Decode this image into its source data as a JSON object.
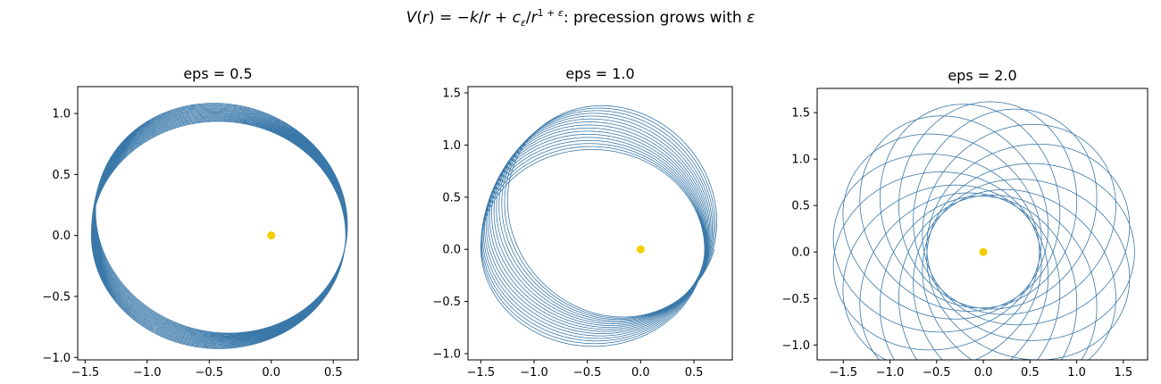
{
  "figure": {
    "suptitle": "V(r) = −k/r + c_ε/r^(1+ε): precession grows with ε"
  },
  "style": {
    "orbit_color": "#3a78a9",
    "sun_color": "#f2cf00",
    "frame_color": "#000000"
  },
  "chart_data": [
    {
      "type": "line",
      "title": "eps = 0.5",
      "xlabel": "",
      "ylabel": "",
      "xlim": [
        -1.56,
        0.7
      ],
      "ylim": [
        -1.02,
        1.22
      ],
      "xticks": [
        -1.5,
        -1.0,
        -0.5,
        0.0,
        0.5
      ],
      "xtick_labels": [
        "−1.5",
        "−1.0",
        "−0.5",
        "0.0",
        "0.5"
      ],
      "yticks": [
        -1.0,
        -0.5,
        0.0,
        0.5,
        1.0
      ],
      "ytick_labels": [
        "−1.0",
        "−0.5",
        "0.0",
        "0.5",
        "1.0"
      ],
      "grid": false,
      "orbit": {
        "periapsis": 0.6,
        "apoapsis": 1.45,
        "precession_per_orbit_deg": -1.0,
        "start_angle_deg": 0,
        "orbits": 20
      },
      "focus": {
        "x": 0.0,
        "y": 0.0
      }
    },
    {
      "type": "line",
      "title": "eps = 1.0",
      "xlabel": "",
      "ylabel": "",
      "xlim": [
        -1.62,
        0.86
      ],
      "ylim": [
        -1.06,
        1.56
      ],
      "xticks": [
        -1.5,
        -1.0,
        -0.5,
        0.0,
        0.5
      ],
      "xtick_labels": [
        "−1.5",
        "−1.0",
        "−0.5",
        "0.0",
        "0.5"
      ],
      "yticks": [
        -1.0,
        -0.5,
        0.0,
        0.5,
        1.0,
        1.5
      ],
      "ytick_labels": [
        "−1.0",
        "−0.5",
        "0.0",
        "0.5",
        "1.0",
        "1.5"
      ],
      "grid": false,
      "orbit": {
        "periapsis": 0.6,
        "apoapsis": 1.5,
        "precession_per_orbit_deg": -3.5,
        "start_angle_deg": 0,
        "orbits": 16
      },
      "focus": {
        "x": 0.0,
        "y": 0.0
      }
    },
    {
      "type": "line",
      "title": "eps = 2.0",
      "xlabel": "",
      "ylabel": "",
      "xlim": [
        -1.78,
        1.76
      ],
      "ylim": [
        -1.16,
        1.76
      ],
      "xticks": [
        -1.5,
        -1.0,
        -0.5,
        0.0,
        0.5,
        1.0,
        1.5
      ],
      "xtick_labels": [
        "−1.5",
        "−1.0",
        "−0.5",
        "0.0",
        "0.5",
        "1.0",
        "1.5"
      ],
      "yticks": [
        -1.0,
        -0.5,
        0.0,
        0.5,
        1.0,
        1.5
      ],
      "ytick_labels": [
        "−1.0",
        "−0.5",
        "0.0",
        "0.5",
        "1.0",
        "1.5"
      ],
      "grid": false,
      "orbit": {
        "periapsis": 0.6,
        "apoapsis": 1.62,
        "precession_per_orbit_deg": -22.5,
        "start_angle_deg": 0,
        "orbits": 16
      },
      "focus": {
        "x": 0.0,
        "y": 0.0
      }
    }
  ]
}
